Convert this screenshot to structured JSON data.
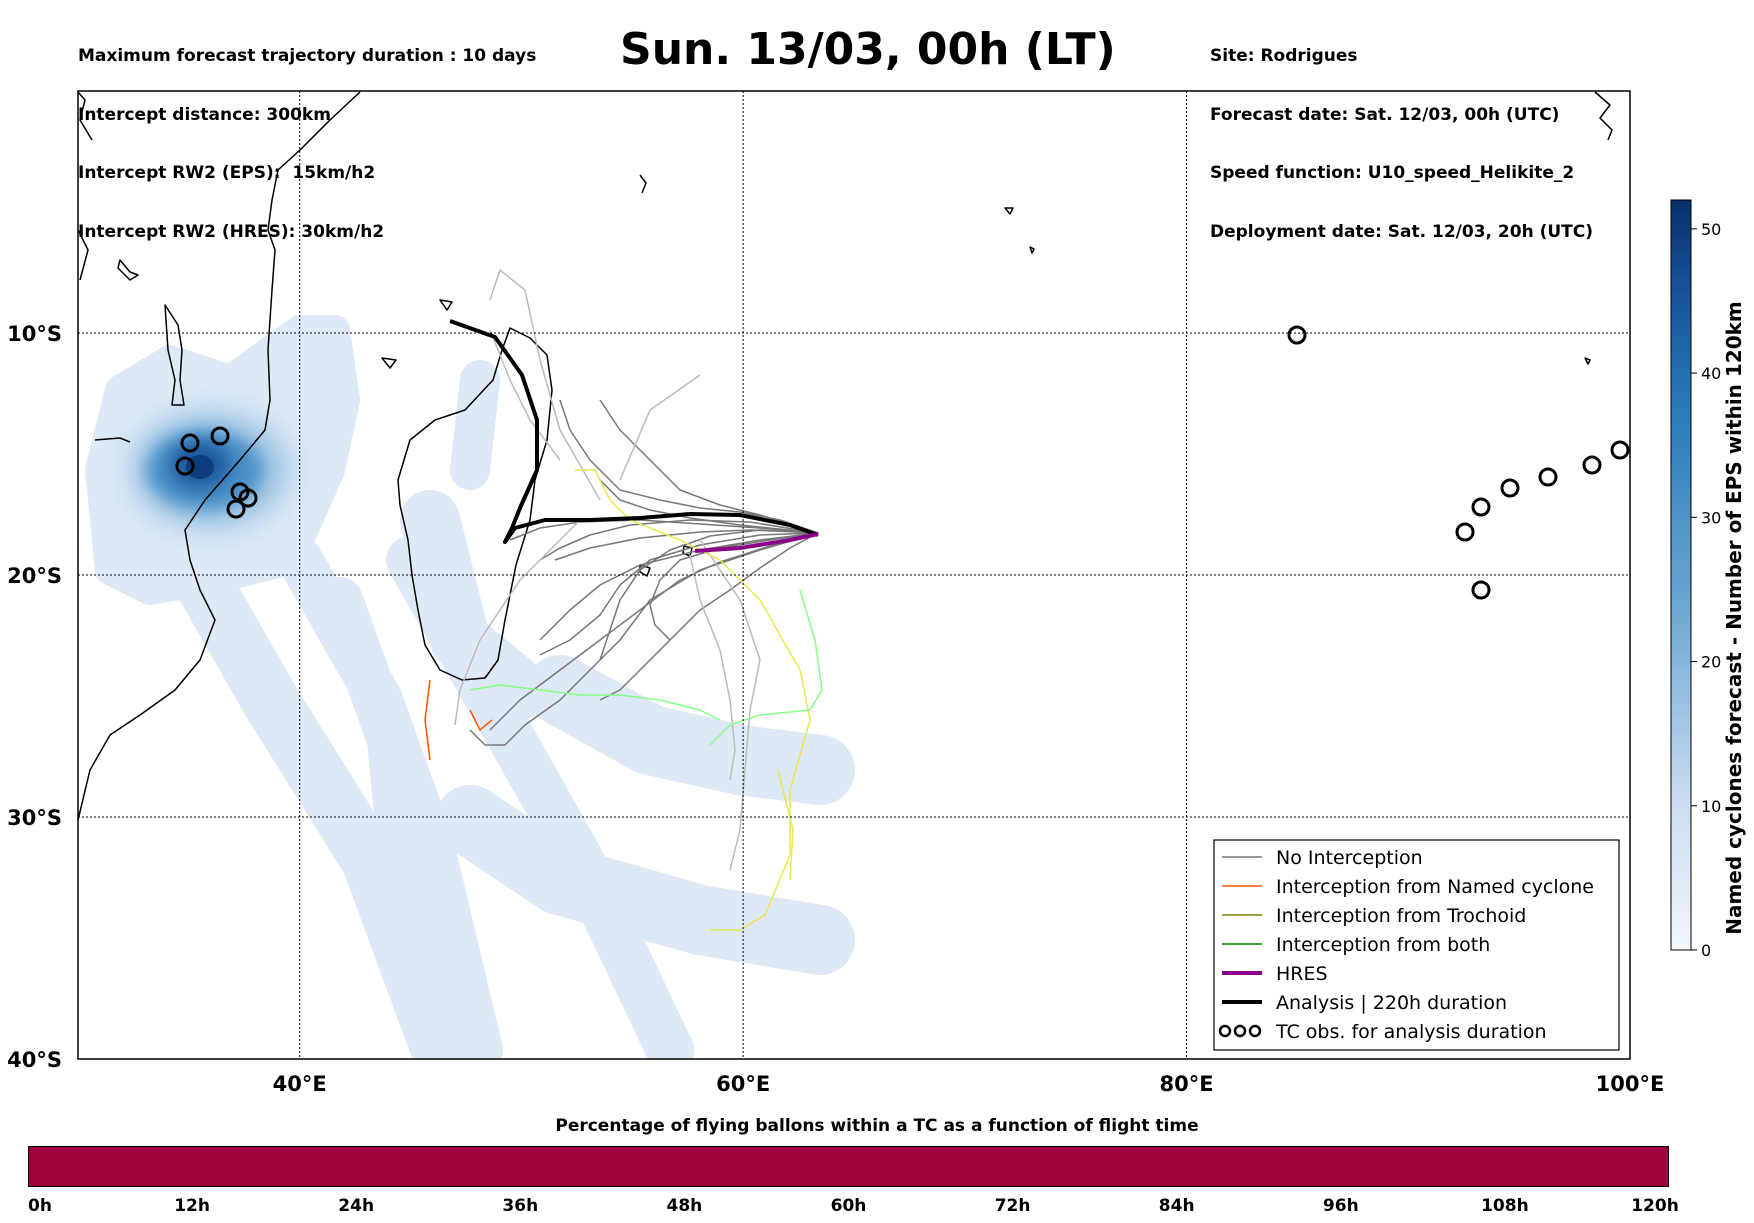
{
  "header": {
    "left_lines": [
      "Maximum forecast trajectory duration : 10 days",
      "Intercept distance: 300km",
      "Intercept RW2 (EPS):  15km/h2",
      "Intercept RW2 (HRES): 30km/h2"
    ],
    "title": "Sun. 13/03, 00h (LT)",
    "right_lines": [
      "Site: Rodrigues",
      "Forecast date: Sat. 12/03, 00h (UTC)",
      "Speed function: U10_speed_Helikite_2",
      "Deployment date: Sat. 12/03, 20h (UTC)"
    ]
  },
  "map": {
    "lon_range": [
      30,
      100
    ],
    "lat_range": [
      -40,
      0
    ],
    "lat_labels": [
      {
        "lat": -10,
        "text": "10°S"
      },
      {
        "lat": -20,
        "text": "20°S"
      },
      {
        "lat": -30,
        "text": "30°S"
      },
      {
        "lat": -40,
        "text": "40°S"
      }
    ],
    "lon_labels": [
      {
        "lon": 40,
        "text": "40°E"
      },
      {
        "lon": 60,
        "text": "60°E"
      },
      {
        "lon": 80,
        "text": "80°E"
      },
      {
        "lon": 100,
        "text": "100°E"
      }
    ],
    "colors": {
      "no_interception": "#777777",
      "named_cyclone": "#ff5500",
      "trochoid": "#808000",
      "both": "#008000",
      "hres": "#8b008b",
      "analysis": "#000000",
      "eps_light": "#dde9f6",
      "eps_dark": "#08306b"
    }
  },
  "legend": {
    "items": [
      {
        "label": "No Interception",
        "color": "#777777",
        "kind": "thin"
      },
      {
        "label": "Interception from Named cyclone",
        "color": "#ff5500",
        "kind": "thin"
      },
      {
        "label": "Interception from Trochoid",
        "color": "#808000",
        "kind": "thin"
      },
      {
        "label": "Interception from both",
        "color": "#008000",
        "kind": "thin"
      },
      {
        "label": "HRES",
        "color": "#8b008b",
        "kind": "thick"
      },
      {
        "label": "Analysis | 220h duration",
        "color": "#000000",
        "kind": "thick"
      },
      {
        "label": "TC obs. for analysis duration",
        "color": "#000000",
        "kind": "symbol"
      }
    ]
  },
  "colorbar": {
    "title": "Named cyclones forecast - Number of EPS within 120km",
    "range": [
      0,
      52
    ],
    "ticks": [
      0,
      10,
      20,
      30,
      40,
      50
    ],
    "tick_labels": [
      "0",
      "10",
      "20",
      "30",
      "40",
      "50"
    ]
  },
  "time_bar": {
    "title": "Percentage of flying ballons within a TC as a function of flight time",
    "color": "#a0003c",
    "labels": [
      "0h",
      "12h",
      "24h",
      "36h",
      "48h",
      "60h",
      "72h",
      "84h",
      "96h",
      "108h",
      "120h"
    ]
  }
}
